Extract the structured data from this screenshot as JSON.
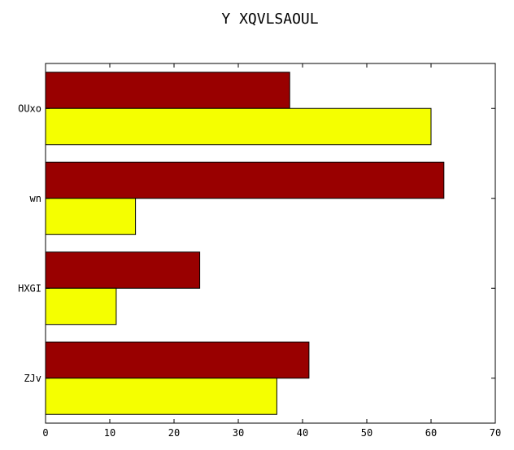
{
  "chart_data": {
    "type": "bar",
    "orientation": "horizontal",
    "title": "Y XQVLSAOUL",
    "xlabel": "",
    "ylabel": "",
    "categories": [
      "OUxo",
      "wn",
      "HXGI",
      "ZJv"
    ],
    "series": [
      {
        "color": "#990000",
        "values": [
          38,
          62,
          24,
          41
        ]
      },
      {
        "color": "#f5ff00",
        "values": [
          60,
          14,
          11,
          36
        ]
      }
    ],
    "xlim": [
      0,
      70
    ],
    "xticks": [
      0,
      10,
      20,
      30,
      40,
      50,
      60,
      70
    ],
    "grid": false,
    "legend": "none"
  }
}
